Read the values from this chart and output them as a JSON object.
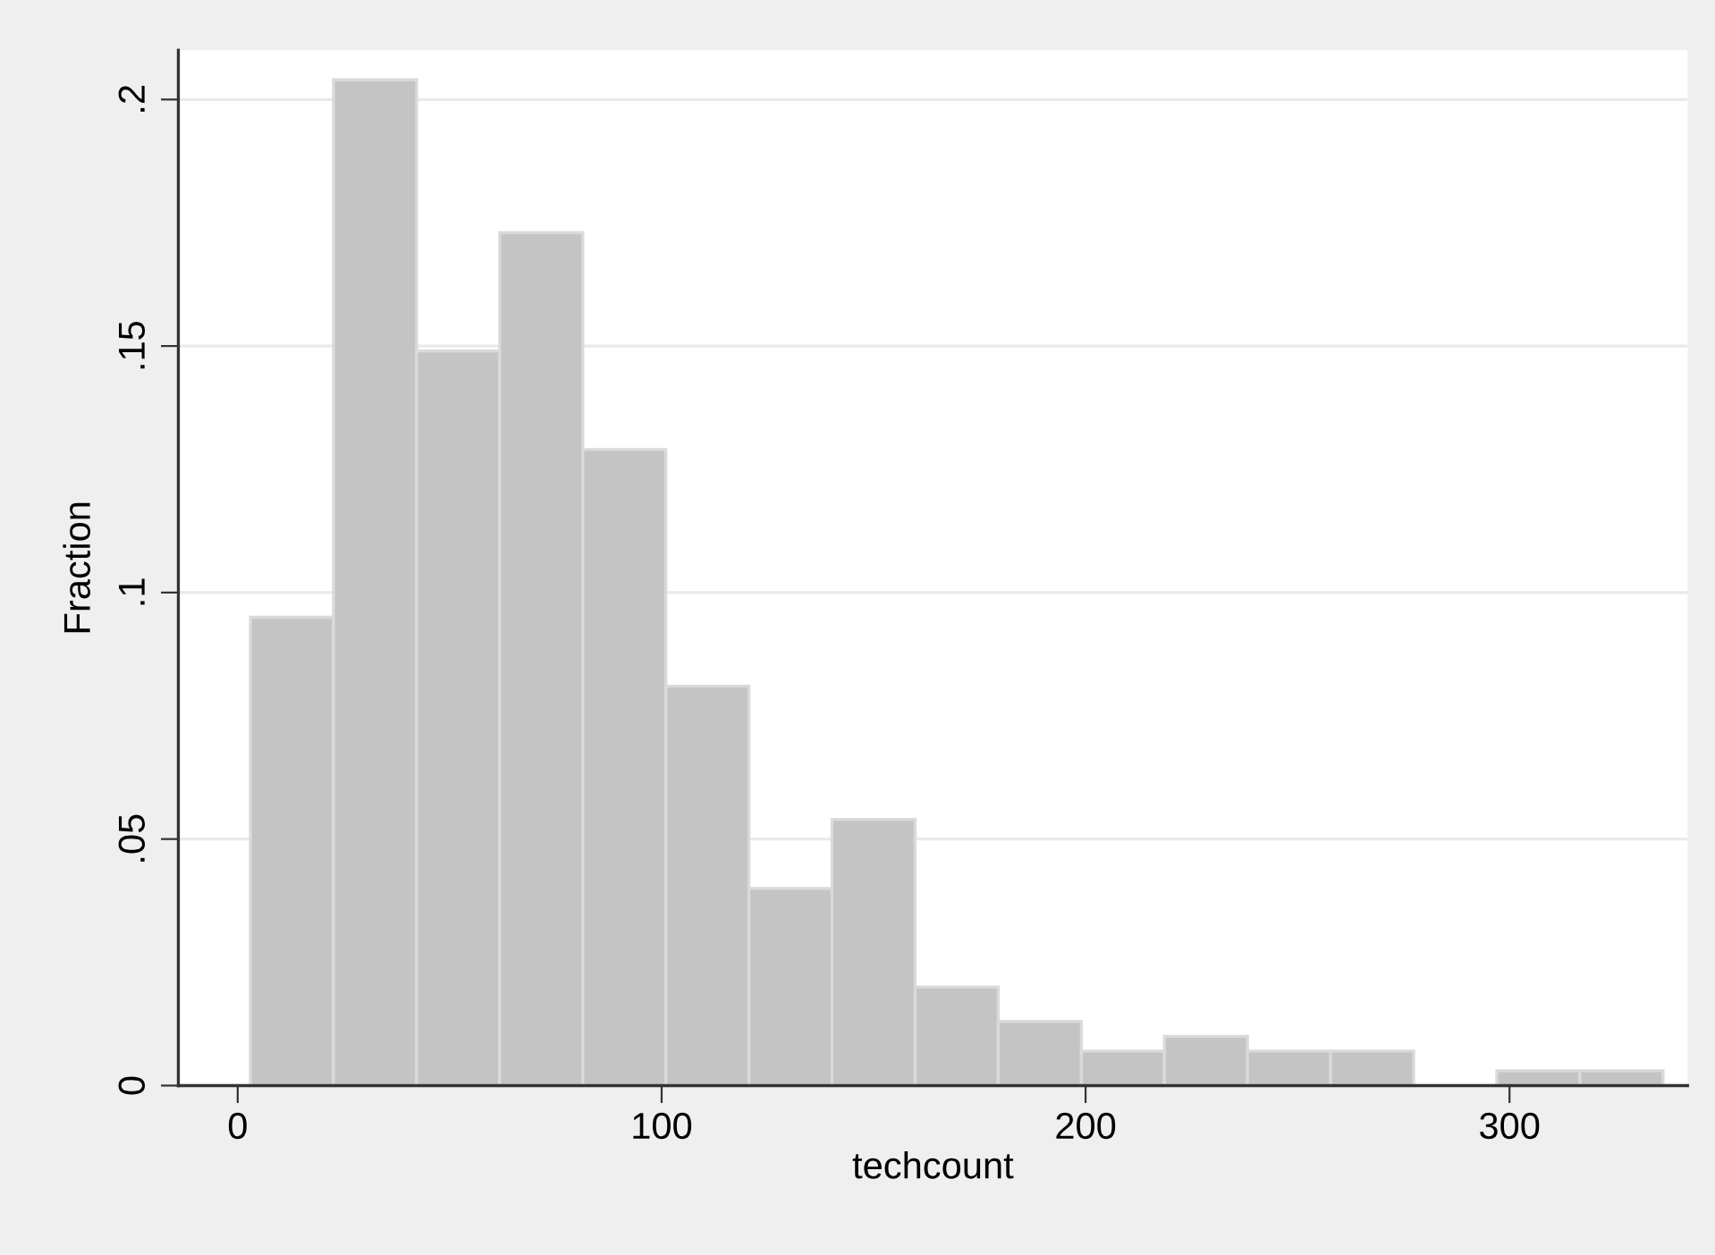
{
  "chart_data": {
    "type": "histogram",
    "xlabel": "techcount",
    "ylabel": "Fraction",
    "bins": [
      3,
      22.6,
      42.2,
      61.8,
      81.4,
      101,
      120.6,
      140.2,
      159.8,
      179.4,
      199,
      218.6,
      238.2,
      257.8,
      277.4,
      297,
      316.6,
      336.2
    ],
    "values": [
      0.095,
      0.204,
      0.149,
      0.173,
      0.129,
      0.081,
      0.04,
      0.054,
      0.02,
      0.013,
      0.007,
      0.01,
      0.007,
      0.007,
      0,
      0.003,
      0.003
    ],
    "color": "#c4c4c4",
    "xlim": [
      -14,
      342
    ],
    "xticks": [
      0,
      100,
      200,
      300
    ],
    "ylim": [
      0,
      0.21
    ],
    "yticks": [
      {
        "value": 0,
        "label": "0"
      },
      {
        "value": 0.05,
        "label": ".05"
      },
      {
        "value": 0.1,
        "label": ".1"
      },
      {
        "value": 0.15,
        "label": ".15"
      },
      {
        "value": 0.2,
        "label": ".2"
      }
    ],
    "grid": "y"
  }
}
